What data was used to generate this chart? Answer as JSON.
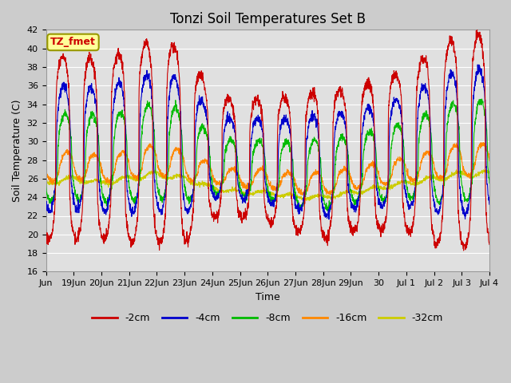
{
  "title": "Tonzi Soil Temperatures Set B",
  "xlabel": "Time",
  "ylabel": "Soil Temperature (C)",
  "ylim": [
    16,
    42
  ],
  "yticks": [
    16,
    18,
    20,
    22,
    24,
    26,
    28,
    30,
    32,
    34,
    36,
    38,
    40,
    42
  ],
  "colors": {
    "-2cm": "#cc0000",
    "-4cm": "#0000cc",
    "-8cm": "#00bb00",
    "-16cm": "#ff8800",
    "-32cm": "#cccc00"
  },
  "legend_label": "TZ_fmet",
  "legend_box_facecolor": "#ffff99",
  "legend_box_edgecolor": "#999900",
  "fig_facecolor": "#cccccc",
  "ax_facecolor": "#e0e0e0",
  "grid_color": "#ffffff",
  "title_fontsize": 12,
  "axis_label_fontsize": 9,
  "tick_fontsize": 8,
  "tick_labels": [
    "Jun",
    "19Jun",
    "20Jun",
    "21Jun",
    "22Jun",
    "23Jun",
    "24Jun",
    "25Jun",
    "26Jun",
    "27Jun",
    "28Jun",
    "29Jun",
    "30",
    "Jul 1",
    "Jul 2",
    "Jul 3",
    "Jul 4"
  ],
  "amplitude_envelope": [
    1.0,
    1.05,
    1.0,
    1.1,
    1.15,
    1.1,
    0.7,
    0.65,
    0.7,
    0.75,
    0.85,
    0.8,
    0.85,
    0.9,
    1.1,
    1.2
  ],
  "base_trend": [
    29.0,
    29.5,
    29.0,
    29.5,
    30.0,
    29.5,
    28.5,
    28.0,
    28.0,
    27.5,
    27.5,
    28.0,
    28.5,
    29.0,
    29.5,
    30.0
  ]
}
